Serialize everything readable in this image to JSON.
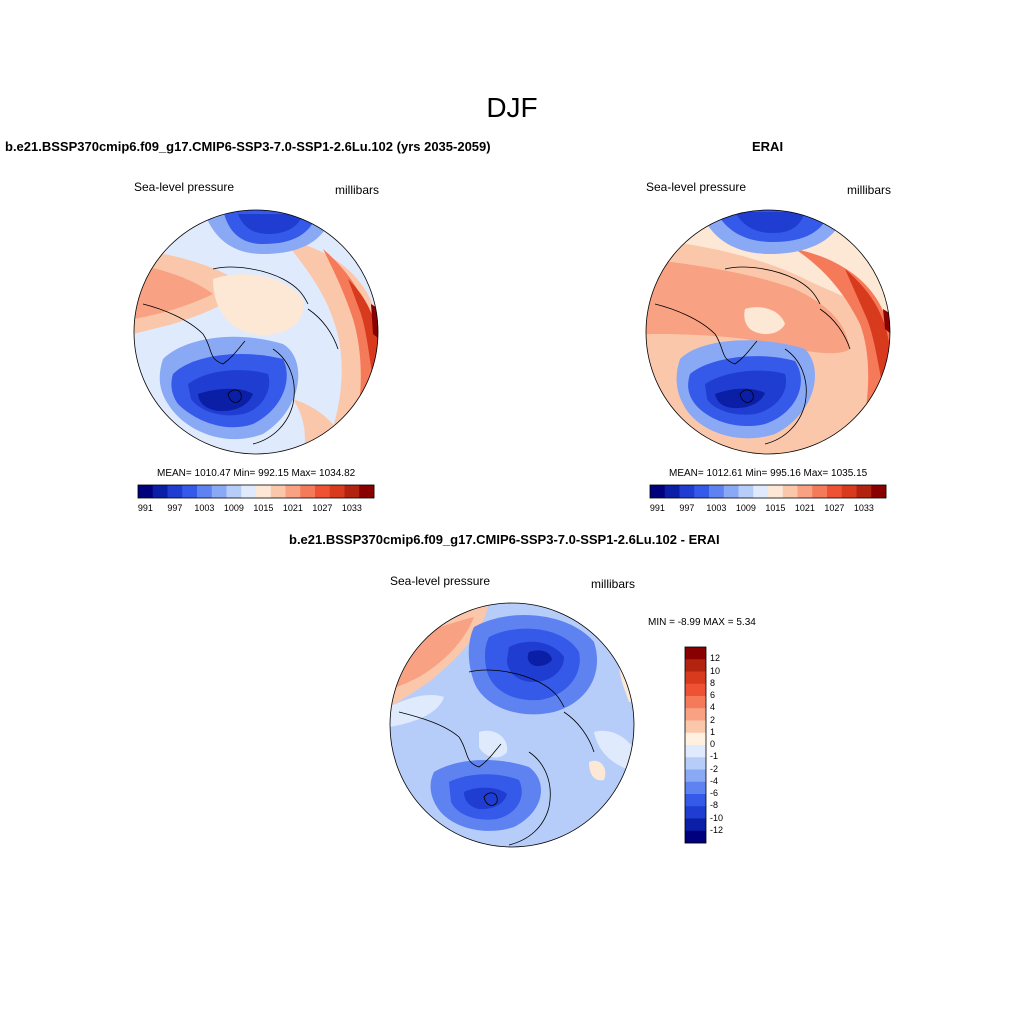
{
  "page": {
    "title": "DJF"
  },
  "panels": {
    "model": {
      "title": "b.e21.BSSP370cmip6.f09_g17.CMIP6-SSP3-7.0-SSP1-2.6Lu.102 (yrs 2035-2059)",
      "left_label": "Sea-level pressure",
      "right_label": "millibars",
      "stats": "MEAN= 1010.47   Min= 992.15   Max= 1034.82"
    },
    "obs": {
      "title": "ERAI",
      "left_label": "Sea-level pressure",
      "right_label": "millibars",
      "stats": "MEAN= 1012.61   Min= 995.16   Max= 1035.15"
    },
    "diff": {
      "title": "b.e21.BSSP370cmip6.f09_g17.CMIP6-SSP3-7.0-SSP1-2.6Lu.102 - ERAI",
      "left_label": "Sea-level pressure",
      "right_label": "millibars",
      "stats": "MIN =  -8.99 MAX =   5.34"
    }
  },
  "colorbars": {
    "abs_colors": [
      "#00007f",
      "#0a1fa6",
      "#1f3ed1",
      "#3559e8",
      "#5e82f0",
      "#8aa9f5",
      "#b7cdf9",
      "#dfeafd",
      "#fde8d6",
      "#fbc7ab",
      "#f8a183",
      "#f57a5a",
      "#ee5233",
      "#d83a1e",
      "#b32410",
      "#880000"
    ],
    "abs_labels": [
      "991",
      "997",
      "1003",
      "1009",
      "1015",
      "1021",
      "1027",
      "1033"
    ],
    "diff_colors": [
      "#00007f",
      "#0a1fa6",
      "#1f3ed1",
      "#3559e8",
      "#5e82f0",
      "#8aa9f5",
      "#b7cdf9",
      "#dfeafd",
      "#fff0e0",
      "#fbc7ab",
      "#f8a183",
      "#f57a5a",
      "#ee5233",
      "#d83a1e",
      "#b32410",
      "#880000"
    ],
    "diff_labels": [
      "-12",
      "-10",
      "-8",
      "-6",
      "-4",
      "-2",
      "-1",
      "0",
      "1",
      "2",
      "4",
      "6",
      "8",
      "10",
      "12"
    ]
  },
  "chart_data": [
    {
      "type": "heatmap",
      "title": "b.e21.BSSP370cmip6.f09_g17.CMIP6-SSP3-7.0-SSP1-2.6Lu.102 (yrs 2035-2059)",
      "variable": "Sea-level pressure",
      "units": "millibars",
      "mean": 1010.47,
      "min": 992.15,
      "max": 1034.82,
      "levels": [
        991,
        994,
        997,
        1000,
        1003,
        1006,
        1009,
        1012,
        1015,
        1018,
        1021,
        1024,
        1027,
        1030,
        1033
      ]
    },
    {
      "type": "heatmap",
      "title": "ERAI",
      "variable": "Sea-level pressure",
      "units": "millibars",
      "mean": 1012.61,
      "min": 995.16,
      "max": 1035.15,
      "levels": [
        991,
        994,
        997,
        1000,
        1003,
        1006,
        1009,
        1012,
        1015,
        1018,
        1021,
        1024,
        1027,
        1030,
        1033
      ]
    },
    {
      "type": "heatmap",
      "title": "b.e21.BSSP370cmip6.f09_g17.CMIP6-SSP3-7.0-SSP1-2.6Lu.102 - ERAI",
      "variable": "Sea-level pressure",
      "units": "millibars",
      "min": -8.99,
      "max": 5.34,
      "levels": [
        -12,
        -10,
        -8,
        -6,
        -4,
        -2,
        -1,
        0,
        1,
        2,
        4,
        6,
        8,
        10,
        12
      ]
    }
  ]
}
